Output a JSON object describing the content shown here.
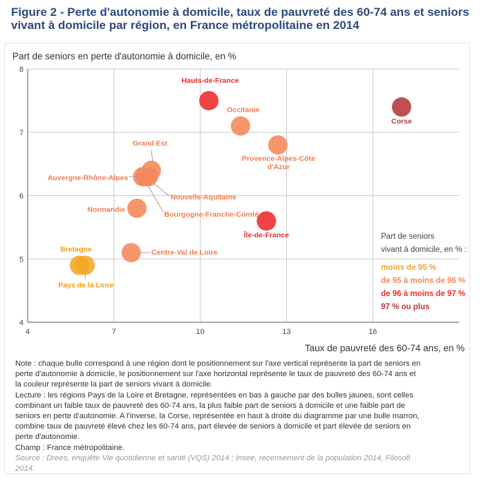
{
  "figure_title": "Figure 2 - Perte d'autonomie à domicile, taux de pauvreté des 60-74 ans et seniors vivant à domicile par région, en France métropolitaine en 2014",
  "colors": {
    "lt95": "#f5a623",
    "95_96": "#f4875a",
    "96_97": "#ee2a2a",
    "ge97": "#b5383c"
  },
  "chart_data": {
    "type": "scatter",
    "ylabel": "Part de seniors en perte d'autonomie à domicile, en %",
    "xlabel": "Taux de pauvreté des 60-74 ans, en %",
    "xlim": [
      4,
      19
    ],
    "ylim": [
      4,
      8
    ],
    "xticks": [
      "4",
      "7",
      "10",
      "13",
      "16"
    ],
    "yticks": [
      "4",
      "5",
      "6",
      "7",
      "8"
    ],
    "grid": true,
    "points": [
      {
        "label": "Hauts-de-France",
        "x": 10.3,
        "y": 7.5,
        "cat": "96_97"
      },
      {
        "label": "Occitanie",
        "x": 11.4,
        "y": 7.1,
        "cat": "95_96"
      },
      {
        "label": "Corse",
        "x": 17.0,
        "y": 7.4,
        "cat": "ge97"
      },
      {
        "label": "Provence-Alpes-Côte",
        "label2": "d'Azur",
        "x": 12.7,
        "y": 6.8,
        "cat": "95_96"
      },
      {
        "label": "Grand Est",
        "x": 8.3,
        "y": 6.4,
        "cat": "95_96"
      },
      {
        "label": "Auvergne-Rhône-Alpes",
        "x": 8.0,
        "y": 6.3,
        "cat": "95_96"
      },
      {
        "label": "Nouvelle-Aquitaine",
        "x": 8.2,
        "y": 6.3,
        "cat": "95_96"
      },
      {
        "label": "Bourgogne-Franche-Comté",
        "x": 8.1,
        "y": 6.3,
        "cat": "95_96"
      },
      {
        "label": "Normandie",
        "x": 7.8,
        "y": 5.8,
        "cat": "95_96"
      },
      {
        "label": "Île-de-France",
        "x": 12.3,
        "y": 5.6,
        "cat": "96_97"
      },
      {
        "label": "Centre-Val de Loire",
        "x": 7.6,
        "y": 5.1,
        "cat": "95_96"
      },
      {
        "label": "Bretagne",
        "x": 5.8,
        "y": 4.9,
        "cat": "lt95"
      },
      {
        "label": "Pays de la Loire",
        "x": 6.0,
        "y": 4.9,
        "cat": "lt95"
      }
    ],
    "legend": {
      "title_line1": "Part de seniors",
      "title_line2": "vivant à domicile, en % :",
      "items": [
        {
          "label": "moins de 95 %",
          "cat": "lt95"
        },
        {
          "label": "de 95 à moins de 96 %",
          "cat": "95_96"
        },
        {
          "label": "de 96 à moins de 97 %",
          "cat": "96_97"
        },
        {
          "label": "97 % ou plus",
          "cat": "ge97"
        }
      ]
    }
  },
  "notes": {
    "note": "Note : chaque bulle correspond à une région dont le positionnement sur l'axe vertical représente la part de seniors en perte d'autonomie à domicile, le positionnement sur l'axe horizontal représente le taux de pauvreté des 60-74 ans et la couleur représente la part de seniors vivant à domicile.",
    "lecture": "Lecture : les régions Pays de la Loire et Bretagne, représentées en bas à gauche par des bulles jaunes, sont celles combinant un faible taux de pauvreté des 60-74 ans, la plus faible part de seniors à domicile et une faible part de seniors en perte d'autonomie. A l'inverse, la Corse, représentée en haut à droite du diagramme par une bulle marron, combine taux de pauvreté élevé chez les 60-74 ans, part élevée de seniors à domicile et part élevée de seniors en perte d'autonomie.",
    "champ": "Champ : France métropolitaine.",
    "source": "Source : Drees, enquête Vie quotidienne et santé (VQS) 2014 ; Insee, recensement de la population 2014, Filosofi 2014."
  }
}
